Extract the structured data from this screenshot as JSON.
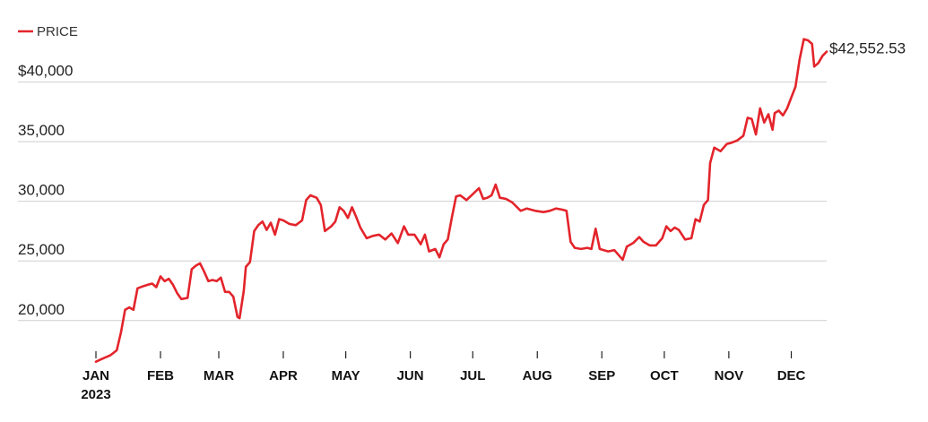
{
  "chart_data": {
    "type": "line",
    "title": "",
    "xlabel": "",
    "ylabel": "",
    "legend": {
      "position": "top-left",
      "entries": [
        "PRICE"
      ]
    },
    "grid": {
      "horizontal": true,
      "vertical": false
    },
    "ylim": [
      16000,
      43500
    ],
    "xlim": [
      "2023-01-01",
      "2023-12-18"
    ],
    "y_ticks": [
      {
        "value": 20000,
        "label": "20,000"
      },
      {
        "value": 25000,
        "label": "25,000"
      },
      {
        "value": 30000,
        "label": "30,000"
      },
      {
        "value": 35000,
        "label": "35,000"
      },
      {
        "value": 40000,
        "label": "$40,000"
      }
    ],
    "x_ticks": [
      {
        "date": "2023-01-01",
        "label": "JAN",
        "sublabel": "2023"
      },
      {
        "date": "2023-02-01",
        "label": "FEB"
      },
      {
        "date": "2023-03-01",
        "label": "MAR"
      },
      {
        "date": "2023-04-01",
        "label": "APR"
      },
      {
        "date": "2023-05-01",
        "label": "MAY"
      },
      {
        "date": "2023-06-01",
        "label": "JUN"
      },
      {
        "date": "2023-07-01",
        "label": "JUL"
      },
      {
        "date": "2023-08-01",
        "label": "AUG"
      },
      {
        "date": "2023-09-01",
        "label": "SEP"
      },
      {
        "date": "2023-10-01",
        "label": "OCT"
      },
      {
        "date": "2023-11-01",
        "label": "NOV"
      },
      {
        "date": "2023-12-01",
        "label": "DEC"
      }
    ],
    "last_value_label": "$42,552.53",
    "line_color": "#e3242b",
    "series": [
      {
        "name": "PRICE",
        "points": [
          [
            "2023-01-01",
            16550
          ],
          [
            "2023-01-04",
            16800
          ],
          [
            "2023-01-08",
            17100
          ],
          [
            "2023-01-11",
            17500
          ],
          [
            "2023-01-13",
            19000
          ],
          [
            "2023-01-15",
            20900
          ],
          [
            "2023-01-17",
            21100
          ],
          [
            "2023-01-19",
            20900
          ],
          [
            "2023-01-21",
            22700
          ],
          [
            "2023-01-24",
            22900
          ],
          [
            "2023-01-26",
            23000
          ],
          [
            "2023-01-28",
            23100
          ],
          [
            "2023-01-30",
            22800
          ],
          [
            "2023-02-01",
            23700
          ],
          [
            "2023-02-03",
            23300
          ],
          [
            "2023-02-05",
            23500
          ],
          [
            "2023-02-07",
            23000
          ],
          [
            "2023-02-09",
            22300
          ],
          [
            "2023-02-11",
            21800
          ],
          [
            "2023-02-14",
            21900
          ],
          [
            "2023-02-16",
            24300
          ],
          [
            "2023-02-18",
            24600
          ],
          [
            "2023-02-20",
            24800
          ],
          [
            "2023-02-22",
            24100
          ],
          [
            "2023-02-24",
            23300
          ],
          [
            "2023-02-26",
            23400
          ],
          [
            "2023-02-28",
            23300
          ],
          [
            "2023-03-02",
            23600
          ],
          [
            "2023-03-04",
            22400
          ],
          [
            "2023-03-06",
            22400
          ],
          [
            "2023-03-08",
            22000
          ],
          [
            "2023-03-10",
            20300
          ],
          [
            "2023-03-11",
            20200
          ],
          [
            "2023-03-13",
            22500
          ],
          [
            "2023-03-14",
            24500
          ],
          [
            "2023-03-16",
            24900
          ],
          [
            "2023-03-18",
            27500
          ],
          [
            "2023-03-20",
            28000
          ],
          [
            "2023-03-22",
            28300
          ],
          [
            "2023-03-24",
            27600
          ],
          [
            "2023-03-26",
            28200
          ],
          [
            "2023-03-28",
            27200
          ],
          [
            "2023-03-30",
            28500
          ],
          [
            "2023-04-01",
            28400
          ],
          [
            "2023-04-04",
            28100
          ],
          [
            "2023-04-07",
            28000
          ],
          [
            "2023-04-10",
            28400
          ],
          [
            "2023-04-12",
            30100
          ],
          [
            "2023-04-14",
            30500
          ],
          [
            "2023-04-17",
            30300
          ],
          [
            "2023-04-19",
            29700
          ],
          [
            "2023-04-21",
            27500
          ],
          [
            "2023-04-24",
            27900
          ],
          [
            "2023-04-26",
            28300
          ],
          [
            "2023-04-28",
            29500
          ],
          [
            "2023-04-30",
            29200
          ],
          [
            "2023-05-02",
            28600
          ],
          [
            "2023-05-04",
            29500
          ],
          [
            "2023-05-06",
            28700
          ],
          [
            "2023-05-08",
            27800
          ],
          [
            "2023-05-11",
            26900
          ],
          [
            "2023-05-14",
            27100
          ],
          [
            "2023-05-17",
            27200
          ],
          [
            "2023-05-20",
            26800
          ],
          [
            "2023-05-23",
            27300
          ],
          [
            "2023-05-26",
            26500
          ],
          [
            "2023-05-29",
            27900
          ],
          [
            "2023-05-31",
            27200
          ],
          [
            "2023-06-03",
            27200
          ],
          [
            "2023-06-06",
            26400
          ],
          [
            "2023-06-08",
            27200
          ],
          [
            "2023-06-10",
            25800
          ],
          [
            "2023-06-13",
            26000
          ],
          [
            "2023-06-15",
            25300
          ],
          [
            "2023-06-17",
            26400
          ],
          [
            "2023-06-19",
            26800
          ],
          [
            "2023-06-21",
            28700
          ],
          [
            "2023-06-23",
            30400
          ],
          [
            "2023-06-25",
            30500
          ],
          [
            "2023-06-28",
            30100
          ],
          [
            "2023-07-01",
            30600
          ],
          [
            "2023-07-04",
            31100
          ],
          [
            "2023-07-06",
            30200
          ],
          [
            "2023-07-08",
            30300
          ],
          [
            "2023-07-10",
            30500
          ],
          [
            "2023-07-12",
            31400
          ],
          [
            "2023-07-14",
            30300
          ],
          [
            "2023-07-17",
            30200
          ],
          [
            "2023-07-20",
            29900
          ],
          [
            "2023-07-24",
            29200
          ],
          [
            "2023-07-27",
            29400
          ],
          [
            "2023-07-31",
            29200
          ],
          [
            "2023-08-04",
            29100
          ],
          [
            "2023-08-07",
            29200
          ],
          [
            "2023-08-10",
            29400
          ],
          [
            "2023-08-13",
            29300
          ],
          [
            "2023-08-15",
            29200
          ],
          [
            "2023-08-17",
            26600
          ],
          [
            "2023-08-19",
            26100
          ],
          [
            "2023-08-22",
            26000
          ],
          [
            "2023-08-25",
            26100
          ],
          [
            "2023-08-27",
            26000
          ],
          [
            "2023-08-29",
            27700
          ],
          [
            "2023-08-31",
            26000
          ],
          [
            "2023-09-04",
            25800
          ],
          [
            "2023-09-07",
            25900
          ],
          [
            "2023-09-11",
            25100
          ],
          [
            "2023-09-13",
            26200
          ],
          [
            "2023-09-16",
            26500
          ],
          [
            "2023-09-19",
            27000
          ],
          [
            "2023-09-21",
            26600
          ],
          [
            "2023-09-24",
            26300
          ],
          [
            "2023-09-27",
            26300
          ],
          [
            "2023-09-30",
            26900
          ],
          [
            "2023-10-02",
            27900
          ],
          [
            "2023-10-04",
            27500
          ],
          [
            "2023-10-06",
            27800
          ],
          [
            "2023-10-08",
            27600
          ],
          [
            "2023-10-11",
            26800
          ],
          [
            "2023-10-14",
            26900
          ],
          [
            "2023-10-16",
            28500
          ],
          [
            "2023-10-18",
            28300
          ],
          [
            "2023-10-20",
            29700
          ],
          [
            "2023-10-22",
            30100
          ],
          [
            "2023-10-23",
            33200
          ],
          [
            "2023-10-25",
            34500
          ],
          [
            "2023-10-28",
            34200
          ],
          [
            "2023-10-31",
            34800
          ],
          [
            "2023-11-02",
            34900
          ],
          [
            "2023-11-05",
            35100
          ],
          [
            "2023-11-08",
            35500
          ],
          [
            "2023-11-10",
            37000
          ],
          [
            "2023-11-12",
            36900
          ],
          [
            "2023-11-14",
            35600
          ],
          [
            "2023-11-16",
            37800
          ],
          [
            "2023-11-18",
            36600
          ],
          [
            "2023-11-20",
            37300
          ],
          [
            "2023-11-22",
            36000
          ],
          [
            "2023-11-23",
            37400
          ],
          [
            "2023-11-25",
            37600
          ],
          [
            "2023-11-27",
            37200
          ],
          [
            "2023-11-29",
            37800
          ],
          [
            "2023-12-01",
            38700
          ],
          [
            "2023-12-03",
            39600
          ],
          [
            "2023-12-05",
            41900
          ],
          [
            "2023-12-07",
            43600
          ],
          [
            "2023-12-09",
            43500
          ],
          [
            "2023-12-11",
            43200
          ],
          [
            "2023-12-12",
            41300
          ],
          [
            "2023-12-14",
            41600
          ],
          [
            "2023-12-16",
            42200
          ],
          [
            "2023-12-18",
            42552.53
          ]
        ]
      }
    ]
  }
}
